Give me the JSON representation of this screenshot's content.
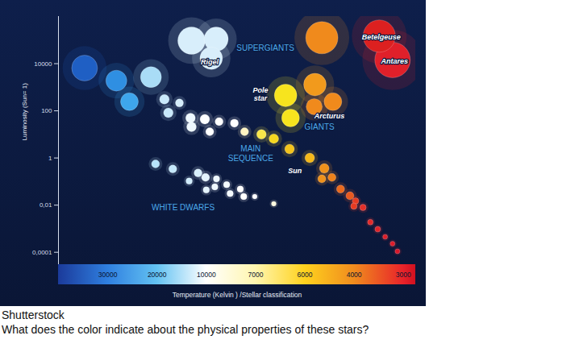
{
  "chart_data": {
    "type": "scatter",
    "x_label": "Temperature (Kelvin ) /Stellar classification",
    "y_label": "Luminosity (Sun= 1)",
    "source": "Shutterstock",
    "caption": "What does the color indicate about the physical properties of these stars?",
    "log": "y",
    "grid": false,
    "xlim": [
      40000,
      2800
    ],
    "xticks": [
      30000,
      20000,
      10000,
      7000,
      6000,
      4000,
      3000
    ],
    "ylim": [
      3e-05,
      1000000
    ],
    "yticks": [
      10000,
      100,
      1,
      {
        "value": 0.01,
        "label": "0,01"
      },
      {
        "value": 0.0001,
        "label": "0,0001"
      }
    ],
    "series": [
      {
        "name": "SUPERGIANTS",
        "label_x": 6800,
        "label_y": 49000,
        "x": [
          13000,
          9400,
          9700,
          5310,
          3490,
          3220
        ],
        "y": [
          95000,
          110000,
          17000,
          126000,
          148000,
          14400
        ],
        "colors": [
          "#d8eefb",
          "#d8eefb",
          "#d8eefb",
          "#f08a1c",
          "#dc2020",
          "#e0202a"
        ],
        "sizes": [
          17,
          15,
          14,
          20,
          20,
          22
        ]
      },
      {
        "name": "GIANTS",
        "label_x": 5410,
        "label_y": 22,
        "x": [
          6390,
          6290,
          5590,
          4860,
          5620
        ],
        "y": [
          450,
          50,
          1300,
          245,
          150
        ],
        "colors": [
          "#f7e41e",
          "#f7e41e",
          "#f29a1c",
          "#f08a1c",
          "#f08a1c"
        ],
        "sizes": [
          14,
          11,
          14,
          11,
          10
        ]
      },
      {
        "name": "MAIN SEQUENCE",
        "label_x": 7300,
        "label_y": 1.6,
        "x": [
          34700,
          28250,
          21230,
          25600,
          18500,
          17700,
          15450,
          13200,
          10300,
          13000,
          9220,
          8290,
          9790,
          7670,
          6880,
          6630,
          6310,
          5800,
          5210,
          4900,
          5310,
          4550,
          4170,
          3970,
          3820,
          4010,
          3670,
          3520,
          3370,
          3220,
          3120
        ],
        "y": [
          6500,
          1900,
          2700,
          245,
          310,
          83,
          215,
          50,
          44,
          21,
          35,
          30,
          13,
          13,
          10,
          6.6,
          2.4,
          1,
          0.36,
          0.15,
          0.13,
          0.048,
          0.025,
          0.015,
          0.008,
          0.009,
          0.0019,
          0.00095,
          0.00045,
          0.00023,
          0.00011
        ],
        "colors": [
          "#1f5fc4",
          "#2f8fe2",
          "#a9dcf6",
          "#3ea6ec",
          "#c9e9fb",
          "#c9e9fb",
          "#d6eefc",
          "#eef8ff",
          "#ffffff",
          "#eef8ff",
          "#ffffff",
          "#ffffff",
          "#ffffff",
          "#fff4c2",
          "#f8e64a",
          "#f6d820",
          "#f4c41c",
          "#f5b81a",
          "#f0921c",
          "#ee821c",
          "#f0921c",
          "#ea6a1e",
          "#e85a20",
          "#e53b22",
          "#e3302a",
          "#e53b22",
          "#e22a2a",
          "#e0242a",
          "#de1f2a",
          "#dc1c2a",
          "#d8182a"
        ],
        "sizes": [
          16,
          13,
          13,
          11,
          6,
          6,
          5,
          6,
          6,
          6,
          5,
          5,
          5,
          5,
          6,
          6,
          6,
          6,
          6,
          5,
          5,
          5,
          5,
          4,
          4,
          4,
          3.5,
          3.5,
          3,
          3,
          3
        ]
      },
      {
        "name": "WHITE DWARFS",
        "label_x": 14700,
        "label_y": 0.008,
        "x": [
          20300,
          16800,
          13480,
          11670,
          10150,
          10000,
          9380,
          9480,
          8760,
          8550,
          7930,
          7720,
          7050,
          6630
        ],
        "y": [
          0.56,
          0.34,
          0.105,
          0.23,
          0.15,
          0.044,
          0.13,
          0.059,
          0.074,
          0.031,
          0.048,
          0.023,
          0.023,
          0.0115
        ],
        "colors": [
          "#b8e4fb",
          "#c4e8fb",
          "#d0ecfc",
          "#d8f0fd",
          "#e4f4fe",
          "#e4f4fe",
          "#eef8ff",
          "#eef8ff",
          "#f4faff",
          "#f4faff",
          "#ffffff",
          "#ffffff",
          "#ffffff",
          "#fffbe0"
        ],
        "sizes": [
          5,
          5,
          4,
          5,
          5,
          4,
          4,
          4,
          4,
          4,
          4,
          4,
          3,
          3
        ]
      }
    ],
    "annotations": [
      {
        "text": "Rigel",
        "x": 9800,
        "y": 11500
      },
      {
        "text": "Betelgeuse",
        "x": 3450,
        "y": 140000
      },
      {
        "text": "Antares",
        "x": 3180,
        "y": 12600
      },
      {
        "text": "Pole star",
        "x": 6900,
        "y": 500
      },
      {
        "text": "Arcturus",
        "x": 5000,
        "y": 60
      },
      {
        "text": "Sun",
        "x": 6200,
        "y": 0.3
      }
    ]
  }
}
